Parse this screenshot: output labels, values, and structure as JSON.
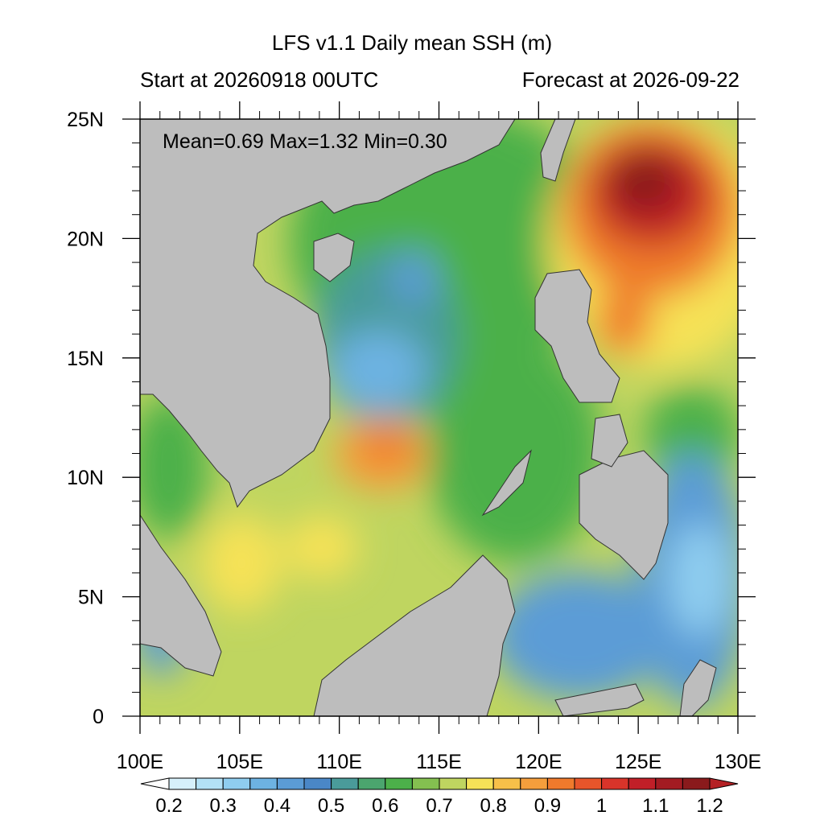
{
  "figure": {
    "title": "LFS v1.1 Daily mean SSH (m)",
    "subtitle_left": "Start at 20260918 00UTC",
    "subtitle_right": "Forecast at 2026-09-22",
    "stats": "Mean=0.69  Max=1.32  Min=0.30"
  },
  "chart_data": {
    "type": "heatmap",
    "variable": "Daily mean SSH (m)",
    "x_axis": {
      "range": [
        100,
        130
      ],
      "ticks": [
        "100E",
        "105E",
        "110E",
        "115E",
        "120E",
        "125E",
        "130E"
      ]
    },
    "y_axis": {
      "range": [
        0,
        25
      ],
      "ticks": [
        "0",
        "5N",
        "10N",
        "15N",
        "20N",
        "25N"
      ]
    },
    "stats": {
      "mean": 0.69,
      "max": 1.32,
      "min": 0.3
    },
    "colorbar": {
      "labels": [
        "0.2",
        "0.3",
        "0.4",
        "0.5",
        "0.6",
        "0.7",
        "0.8",
        "0.9",
        "1",
        "1.1",
        "1.2"
      ],
      "levels": [
        0.2,
        0.25,
        0.3,
        0.35,
        0.4,
        0.45,
        0.5,
        0.55,
        0.6,
        0.65,
        0.7,
        0.75,
        0.8,
        0.85,
        0.9,
        0.95,
        1.0,
        1.05,
        1.1,
        1.15,
        1.2
      ],
      "colors": [
        "#ffffff",
        "#d6f0fb",
        "#b3e1f6",
        "#8fcdef",
        "#6db2e2",
        "#5b9cd6",
        "#4a87c7",
        "#4a9b9a",
        "#4ba56e",
        "#4cb04a",
        "#84c050",
        "#bfd560",
        "#f6e257",
        "#f7c049",
        "#f59e3c",
        "#ef7a2c",
        "#e7552a",
        "#d8342a",
        "#c11f28",
        "#a31b22",
        "#8a1a1c",
        "#b42124"
      ]
    },
    "features": [
      {
        "name": "high SSH anomaly east of Taiwan / Luzon Strait",
        "approx_value": 1.3
      },
      {
        "name": "low SSH area off central Vietnam",
        "approx_value": 0.5
      },
      {
        "name": "high SSH eddy southeast of Vietnam",
        "approx_value": 0.9
      },
      {
        "name": "low SSH east of Mindanao",
        "approx_value": 0.35
      }
    ]
  }
}
